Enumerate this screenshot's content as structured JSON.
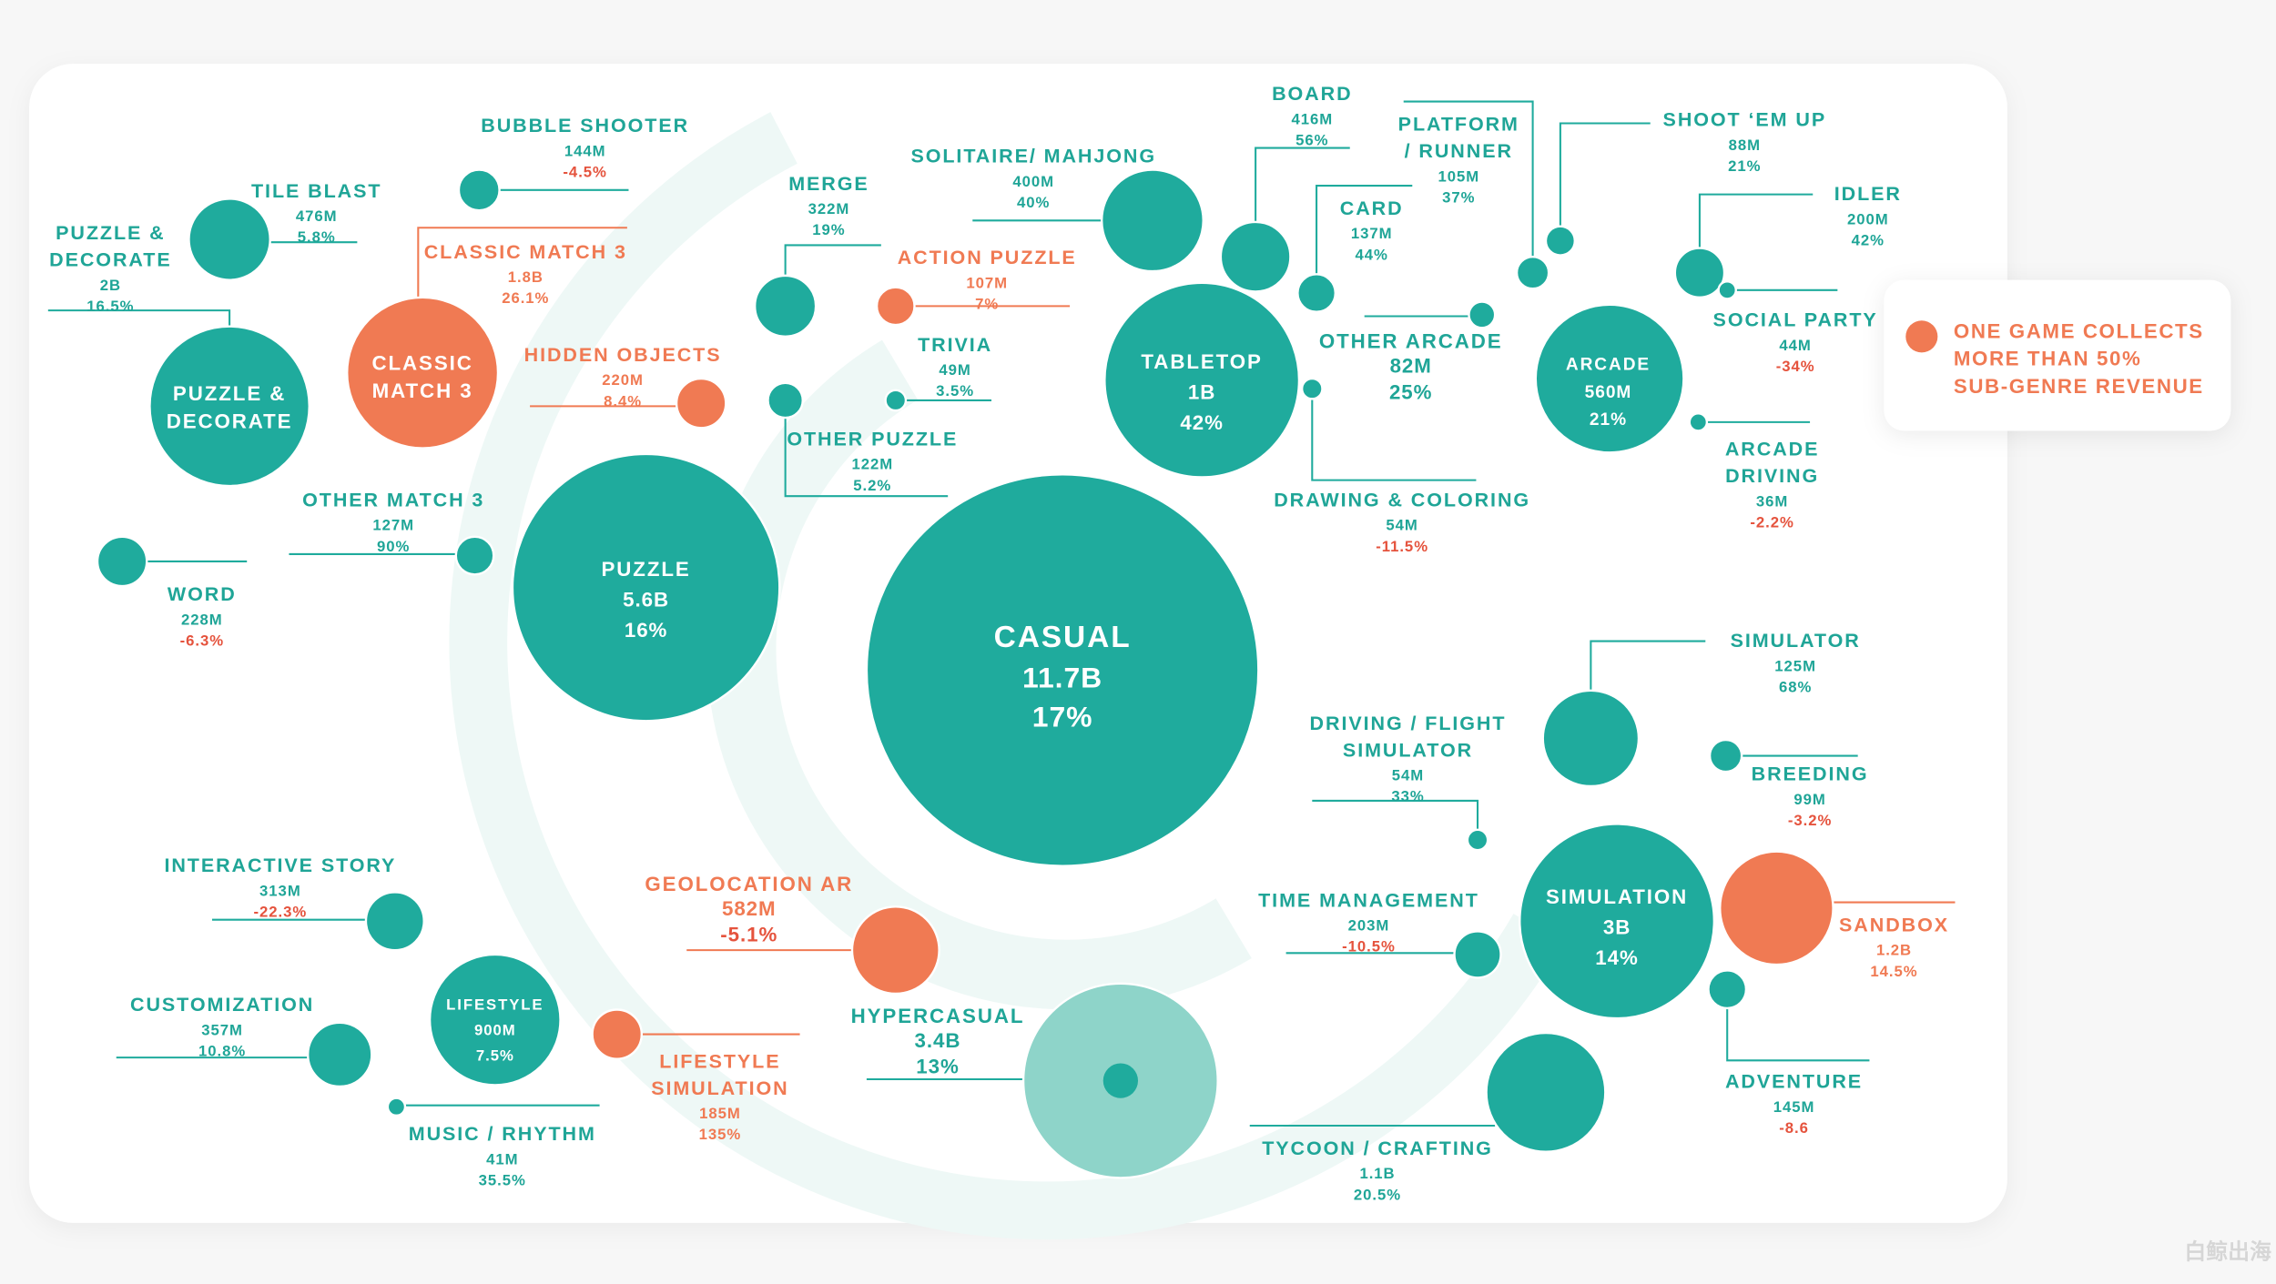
{
  "colors": {
    "primary": "#1fab9d",
    "highlight": "#f07a53",
    "negative": "#e5533d",
    "hypercasual": "#8ed4c9",
    "ring": "#eef8f6"
  },
  "legend": {
    "icon": "orange-dot",
    "lines": [
      "ONE GAME COLLECTS",
      "MORE THAN 50%",
      "SUB-GENRE REVENUE"
    ]
  },
  "watermark": "白鲸出海",
  "chart_data": {
    "type": "scatter",
    "nodes": [
      {
        "id": "casual",
        "name": [
          "CASUAL"
        ],
        "value": "11.7B",
        "growth": "17%",
        "highlight": false
      },
      {
        "id": "puzzle",
        "name": [
          "PUZZLE"
        ],
        "value": "5.6B",
        "growth": "16%",
        "highlight": false
      },
      {
        "id": "pd",
        "name": [
          "PUZZLE &",
          "DECORATE"
        ],
        "value": "",
        "growth": "",
        "highlight": false
      },
      {
        "id": "pd_sub",
        "name": [
          "PUZZLE &",
          "DECORATE"
        ],
        "value": "2B",
        "growth": "16.5%",
        "highlight": false
      },
      {
        "id": "cm3",
        "name": [
          "CLASSIC",
          "MATCH 3"
        ],
        "value": "",
        "growth": "",
        "highlight": true
      },
      {
        "id": "cm3_sub",
        "name": [
          "CLASSIC MATCH 3"
        ],
        "value": "1.8B",
        "growth": "26.1%",
        "highlight": true
      },
      {
        "id": "tile",
        "name": [
          "TILE BLAST"
        ],
        "value": "476M",
        "growth": "5.8%",
        "highlight": false
      },
      {
        "id": "bubble",
        "name": [
          "BUBBLE SHOOTER"
        ],
        "value": "144M",
        "growth": "-4.5%",
        "highlight": false
      },
      {
        "id": "word",
        "name": [
          "WORD"
        ],
        "value": "228M",
        "growth": "-6.3%",
        "highlight": false
      },
      {
        "id": "om3",
        "name": [
          "OTHER MATCH 3"
        ],
        "value": "127M",
        "growth": "90%",
        "highlight": false
      },
      {
        "id": "hidden",
        "name": [
          "HIDDEN OBJECTS"
        ],
        "value": "220M",
        "growth": "8.4%",
        "highlight": true
      },
      {
        "id": "merge",
        "name": [
          "MERGE"
        ],
        "value": "322M",
        "growth": "19%",
        "highlight": false
      },
      {
        "id": "action",
        "name": [
          "ACTION PUZZLE"
        ],
        "value": "107M",
        "growth": "7%",
        "highlight": true
      },
      {
        "id": "opuzzle",
        "name": [
          "OTHER PUZZLE"
        ],
        "value": "122M",
        "growth": "5.2%",
        "highlight": false
      },
      {
        "id": "trivia",
        "name": [
          "TRIVIA"
        ],
        "value": "49M",
        "growth": "3.5%",
        "highlight": false
      },
      {
        "id": "solitaire",
        "name": [
          "SOLITAIRE/ MAHJONG"
        ],
        "value": "400M",
        "growth": "40%",
        "highlight": false
      },
      {
        "id": "board",
        "name": [
          "BOARD"
        ],
        "value": "416M",
        "growth": "56%",
        "highlight": false
      },
      {
        "id": "card",
        "name": [
          "CARD"
        ],
        "value": "137M",
        "growth": "44%",
        "highlight": false
      },
      {
        "id": "tabletop",
        "name": [
          "TABLETOP"
        ],
        "value": "1B",
        "growth": "42%",
        "highlight": false
      },
      {
        "id": "oarcade",
        "name": [
          "OTHER ARCADE"
        ],
        "value": "82M",
        "growth": "25%",
        "highlight": false
      },
      {
        "id": "drawing",
        "name": [
          "DRAWING & COLORING"
        ],
        "value": "54M",
        "growth": "-11.5%",
        "highlight": false
      },
      {
        "id": "platform",
        "name": [
          "PLATFORM",
          "/ RUNNER"
        ],
        "value": "105M",
        "growth": "37%",
        "highlight": false
      },
      {
        "id": "shoot",
        "name": [
          "SHOOT ‘EM UP"
        ],
        "value": "88M",
        "growth": "21%",
        "highlight": false
      },
      {
        "id": "idler",
        "name": [
          "IDLER"
        ],
        "value": "200M",
        "growth": "42%",
        "highlight": false
      },
      {
        "id": "social",
        "name": [
          "SOCIAL PARTY"
        ],
        "value": "44M",
        "growth": "-34%",
        "highlight": false
      },
      {
        "id": "arcade",
        "name": [
          "ARCADE"
        ],
        "value": "560M",
        "growth": "21%",
        "highlight": false
      },
      {
        "id": "adriving",
        "name": [
          "ARCADE",
          "DRIVING"
        ],
        "value": "36M",
        "growth": "-2.2%",
        "highlight": false
      },
      {
        "id": "simulator",
        "name": [
          "SIMULATOR"
        ],
        "value": "125M",
        "growth": "68%",
        "highlight": false
      },
      {
        "id": "breeding",
        "name": [
          "BREEDING"
        ],
        "value": "99M",
        "growth": "-3.2%",
        "highlight": false
      },
      {
        "id": "dfs",
        "name": [
          "DRIVING / FLIGHT",
          "SIMULATOR"
        ],
        "value": "54M",
        "growth": "33%",
        "highlight": false
      },
      {
        "id": "simulation",
        "name": [
          "SIMULATION"
        ],
        "value": "3B",
        "growth": "14%",
        "highlight": false
      },
      {
        "id": "sandbox",
        "name": [
          "SANDBOX"
        ],
        "value": "1.2B",
        "growth": "14.5%",
        "highlight": true
      },
      {
        "id": "timemgmt",
        "name": [
          "TIME MANAGEMENT"
        ],
        "value": "203M",
        "growth": "-10.5%",
        "highlight": false
      },
      {
        "id": "adventure",
        "name": [
          "ADVENTURE"
        ],
        "value": "145M",
        "growth": "-8.6",
        "highlight": false
      },
      {
        "id": "tycoon",
        "name": [
          "TYCOON / CRAFTING"
        ],
        "value": "1.1B",
        "growth": "20.5%",
        "highlight": false
      },
      {
        "id": "hyper",
        "name": [
          "HYPERCASUAL"
        ],
        "value": "3.4B",
        "growth": "13%",
        "highlight": false
      },
      {
        "id": "geo",
        "name": [
          "GEOLOCATION AR"
        ],
        "value": "582M",
        "growth": "-5.1%",
        "highlight": true
      },
      {
        "id": "lifestyle",
        "name": [
          "LIFESTYLE"
        ],
        "value": "900M",
        "growth": "7.5%",
        "highlight": false
      },
      {
        "id": "lsim",
        "name": [
          "LIFESTYLE",
          "SIMULATION"
        ],
        "value": "185M",
        "growth": "135%",
        "highlight": true
      },
      {
        "id": "istory",
        "name": [
          "INTERACTIVE STORY"
        ],
        "value": "313M",
        "growth": "-22.3%",
        "highlight": false
      },
      {
        "id": "custom",
        "name": [
          "CUSTOMIZATION"
        ],
        "value": "357M",
        "growth": "10.8%",
        "highlight": false
      },
      {
        "id": "music",
        "name": [
          "MUSIC / RHYTHM"
        ],
        "value": "41M",
        "growth": "35.5%",
        "highlight": false
      }
    ]
  }
}
